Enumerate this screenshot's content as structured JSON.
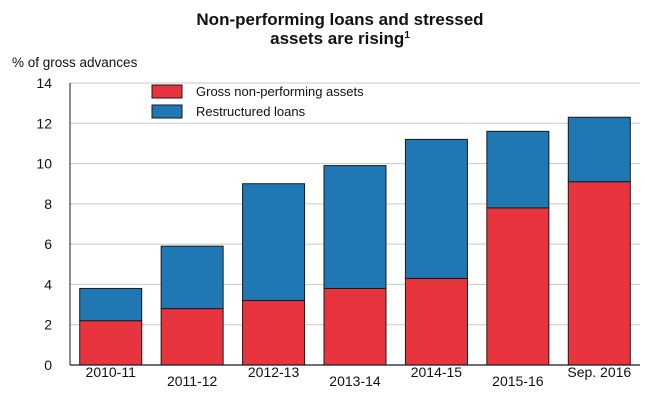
{
  "chart_data": {
    "type": "bar",
    "stacked": true,
    "title": "Non-performing loans and stressed assets are rising",
    "title_lines": [
      "Non-performing loans and stressed",
      "assets are rising"
    ],
    "title_footnote": "1",
    "ylabel": "% of gross advances",
    "xlabel": "",
    "ylim": [
      0,
      14
    ],
    "yticks": [
      0,
      2,
      4,
      6,
      8,
      10,
      12,
      14
    ],
    "grid": true,
    "legend_position": "top-left",
    "categories": [
      "2010-11",
      "2011-12",
      "2012-13",
      "2013-14",
      "2014-15",
      "2015-16",
      "Sep. 2016"
    ],
    "series": [
      {
        "name": "Gross non-performing assets",
        "color": "#e8343f",
        "values": [
          2.2,
          2.8,
          3.2,
          3.8,
          4.3,
          7.8,
          9.1
        ]
      },
      {
        "name": "Restructured loans",
        "color": "#1f78b4",
        "values": [
          1.6,
          3.1,
          5.8,
          6.1,
          6.9,
          3.8,
          3.2
        ]
      }
    ]
  }
}
